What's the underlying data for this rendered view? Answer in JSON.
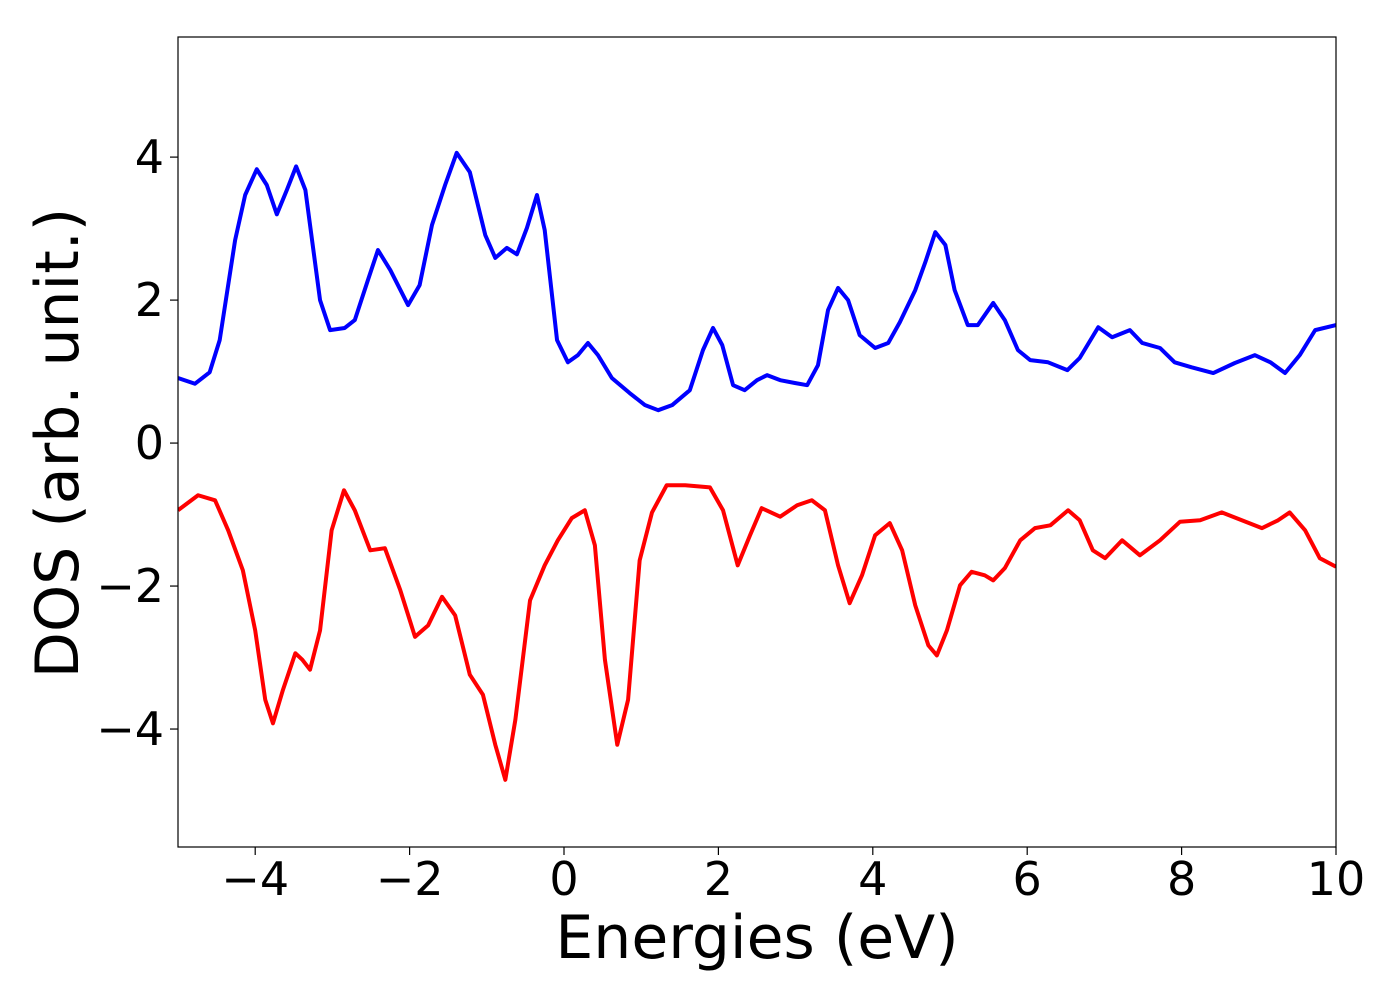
{
  "chart_data": {
    "type": "line",
    "xlabel": "Energies (eV)",
    "ylabel": "DOS (arb. unit.)",
    "xlim": [
      -5,
      10
    ],
    "ylim": [
      -5.65,
      5.68
    ],
    "xticks": [
      {
        "value": -4,
        "label": "−4"
      },
      {
        "value": -2,
        "label": "−2"
      },
      0,
      2,
      4,
      6,
      8,
      10
    ],
    "yticks": [
      {
        "value": -4,
        "label": "−4"
      },
      {
        "value": -2,
        "label": "−2"
      },
      0,
      2,
      4
    ],
    "series": [
      {
        "color": "#0000ff",
        "x": [
          -5,
          -4.78,
          -4.59,
          -4.46,
          -4.26,
          -4.13,
          -3.98,
          -3.85,
          -3.72,
          -3.59,
          -3.47,
          -3.35,
          -3.16,
          -3.03,
          -2.84,
          -2.71,
          -2.54,
          -2.41,
          -2.25,
          -2.02,
          -1.87,
          -1.71,
          -1.54,
          -1.39,
          -1.22,
          -1.02,
          -0.89,
          -0.74,
          -0.61,
          -0.48,
          -0.35,
          -0.25,
          -0.09,
          0.05,
          0.18,
          0.31,
          0.44,
          0.62,
          0.85,
          1.05,
          1.22,
          1.4,
          1.63,
          1.8,
          1.93,
          2.05,
          2.19,
          2.34,
          2.5,
          2.63,
          2.8,
          2.99,
          3.15,
          3.29,
          3.42,
          3.55,
          3.68,
          3.83,
          4.03,
          4.2,
          4.35,
          4.55,
          4.68,
          4.81,
          4.94,
          5.06,
          5.23,
          5.36,
          5.56,
          5.71,
          5.88,
          6.04,
          6.27,
          6.52,
          6.68,
          6.92,
          7.1,
          7.33,
          7.49,
          7.72,
          7.91,
          8.13,
          8.41,
          8.69,
          8.95,
          9.15,
          9.34,
          9.53,
          9.73,
          10
        ],
        "values": [
          0.91,
          0.83,
          0.99,
          1.44,
          2.84,
          3.47,
          3.83,
          3.61,
          3.2,
          3.54,
          3.87,
          3.54,
          2.0,
          1.58,
          1.61,
          1.72,
          2.28,
          2.7,
          2.42,
          1.93,
          2.21,
          3.05,
          3.61,
          4.06,
          3.79,
          2.91,
          2.59,
          2.73,
          2.64,
          3.01,
          3.47,
          2.98,
          1.44,
          1.13,
          1.23,
          1.4,
          1.23,
          0.91,
          0.7,
          0.53,
          0.46,
          0.53,
          0.74,
          1.3,
          1.61,
          1.37,
          0.81,
          0.74,
          0.88,
          0.95,
          0.88,
          0.84,
          0.81,
          1.09,
          1.86,
          2.17,
          2.0,
          1.51,
          1.33,
          1.4,
          1.69,
          2.14,
          2.53,
          2.95,
          2.77,
          2.14,
          1.65,
          1.65,
          1.96,
          1.72,
          1.3,
          1.16,
          1.13,
          1.02,
          1.19,
          1.62,
          1.48,
          1.58,
          1.4,
          1.33,
          1.13,
          1.06,
          0.98,
          1.12,
          1.23,
          1.13,
          0.98,
          1.23,
          1.58,
          1.65
        ]
      },
      {
        "color": "#ff0000",
        "x": [
          -5,
          -4.74,
          -4.52,
          -4.35,
          -4.16,
          -4.0,
          -3.87,
          -3.77,
          -3.64,
          -3.48,
          -3.39,
          -3.29,
          -3.16,
          -3.01,
          -2.85,
          -2.71,
          -2.51,
          -2.32,
          -2.12,
          -1.93,
          -1.76,
          -1.58,
          -1.41,
          -1.22,
          -1.05,
          -0.89,
          -0.76,
          -0.63,
          -0.44,
          -0.25,
          -0.08,
          0.1,
          0.27,
          0.4,
          0.53,
          0.69,
          0.83,
          0.98,
          1.14,
          1.33,
          1.57,
          1.89,
          2.06,
          2.25,
          2.41,
          2.56,
          2.8,
          3.02,
          3.21,
          3.38,
          3.55,
          3.7,
          3.86,
          4.03,
          4.22,
          4.38,
          4.55,
          4.72,
          4.83,
          4.96,
          5.13,
          5.28,
          5.45,
          5.56,
          5.71,
          5.91,
          6.1,
          6.3,
          6.53,
          6.68,
          6.85,
          7.01,
          7.23,
          7.46,
          7.72,
          7.98,
          8.24,
          8.52,
          8.78,
          9.04,
          9.25,
          9.4,
          9.6,
          9.79,
          10
        ],
        "values": [
          -0.94,
          -0.73,
          -0.8,
          -1.22,
          -1.78,
          -2.62,
          -3.59,
          -3.92,
          -3.45,
          -2.94,
          -3.03,
          -3.17,
          -2.62,
          -1.22,
          -0.66,
          -0.94,
          -1.5,
          -1.47,
          -2.06,
          -2.71,
          -2.55,
          -2.15,
          -2.41,
          -3.24,
          -3.52,
          -4.22,
          -4.71,
          -3.87,
          -2.2,
          -1.71,
          -1.36,
          -1.05,
          -0.94,
          -1.43,
          -3.03,
          -4.22,
          -3.59,
          -1.64,
          -0.97,
          -0.59,
          -0.59,
          -0.62,
          -0.94,
          -1.71,
          -1.29,
          -0.91,
          -1.03,
          -0.87,
          -0.8,
          -0.94,
          -1.71,
          -2.24,
          -1.85,
          -1.29,
          -1.12,
          -1.5,
          -2.27,
          -2.83,
          -2.97,
          -2.62,
          -1.99,
          -1.8,
          -1.85,
          -1.92,
          -1.75,
          -1.36,
          -1.19,
          -1.15,
          -0.94,
          -1.08,
          -1.5,
          -1.61,
          -1.36,
          -1.57,
          -1.36,
          -1.1,
          -1.08,
          -0.97,
          -1.08,
          -1.19,
          -1.08,
          -0.97,
          -1.22,
          -1.61,
          -1.73
        ]
      }
    ]
  }
}
